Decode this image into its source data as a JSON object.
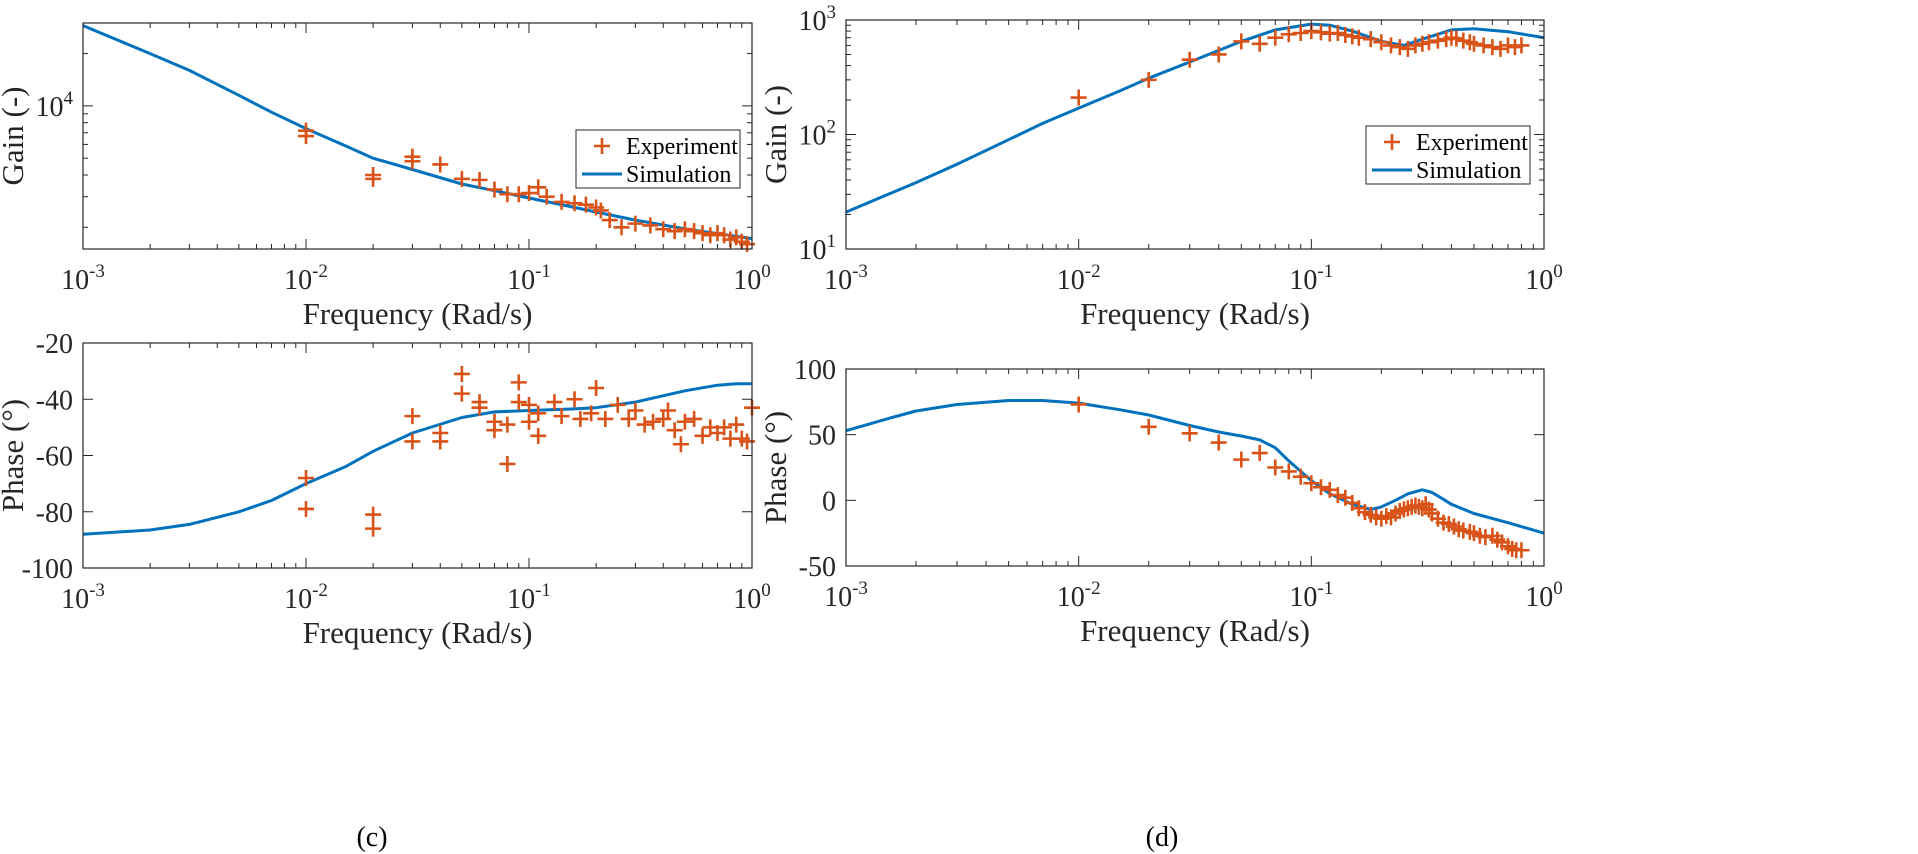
{
  "colors": {
    "experiment": "#D95319",
    "simulation": "#0072BD",
    "axis": "#262626"
  },
  "chart_data": [
    {
      "id": "c-gain",
      "type": "line",
      "xscale": "log",
      "yscale": "log",
      "xlim": [
        0.001,
        1
      ],
      "ylim": [
        1500,
        30000
      ],
      "xlabel": "Frequency (Rad/s)",
      "ylabel": "Gain (-)",
      "xticks": [
        {
          "base": "10",
          "exp": "-3"
        },
        {
          "base": "10",
          "exp": "-2"
        },
        {
          "base": "10",
          "exp": "-1"
        },
        {
          "base": "10",
          "exp": "0"
        }
      ],
      "yticks": [
        {
          "base": "10",
          "exp": "4",
          "value": 10000
        }
      ],
      "yminor": [
        2000
      ],
      "legend": {
        "position": "right",
        "entries": [
          "Experiment",
          "Simulation"
        ]
      },
      "series": [
        {
          "name": "Simulation",
          "kind": "line",
          "x": [
            0.001,
            0.002,
            0.003,
            0.005,
            0.007,
            0.01,
            0.015,
            0.02,
            0.03,
            0.05,
            0.07,
            0.1,
            0.15,
            0.2,
            0.3,
            0.5,
            0.7,
            1.0
          ],
          "y": [
            29000,
            20000,
            16000,
            11500,
            9200,
            7400,
            5900,
            5000,
            4300,
            3550,
            3250,
            2950,
            2650,
            2450,
            2200,
            1960,
            1840,
            1720
          ]
        },
        {
          "name": "Experiment",
          "kind": "scatter",
          "x": [
            0.01,
            0.01,
            0.02,
            0.02,
            0.03,
            0.03,
            0.04,
            0.05,
            0.06,
            0.07,
            0.08,
            0.09,
            0.1,
            0.11,
            0.12,
            0.14,
            0.16,
            0.18,
            0.2,
            0.21,
            0.23,
            0.26,
            0.3,
            0.35,
            0.4,
            0.45,
            0.5,
            0.55,
            0.6,
            0.65,
            0.7,
            0.75,
            0.8,
            0.85,
            0.9,
            0.95
          ],
          "y": [
            7200,
            6700,
            4000,
            3800,
            5100,
            4800,
            4600,
            3800,
            3750,
            3300,
            3100,
            3100,
            3150,
            3400,
            3000,
            2800,
            2750,
            2700,
            2600,
            2500,
            2200,
            2000,
            2100,
            2050,
            1950,
            1900,
            1950,
            1900,
            1850,
            1800,
            1850,
            1800,
            1700,
            1750,
            1650,
            1600
          ]
        }
      ]
    },
    {
      "id": "c-phase",
      "type": "line",
      "xscale": "log",
      "yscale": "linear",
      "xlim": [
        0.001,
        1
      ],
      "ylim": [
        -100,
        -20
      ],
      "xlabel": "Frequency (Rad/s)",
      "ylabel": "Phase (°)",
      "xticks": [
        {
          "base": "10",
          "exp": "-3"
        },
        {
          "base": "10",
          "exp": "-2"
        },
        {
          "base": "10",
          "exp": "-1"
        },
        {
          "base": "10",
          "exp": "0"
        }
      ],
      "yticks": [
        {
          "label": "-20",
          "value": -20
        },
        {
          "label": "-40",
          "value": -40
        },
        {
          "label": "-60",
          "value": -60
        },
        {
          "label": "-80",
          "value": -80
        },
        {
          "label": "-100",
          "value": -100
        }
      ],
      "series": [
        {
          "name": "Simulation",
          "kind": "line",
          "x": [
            0.001,
            0.002,
            0.003,
            0.005,
            0.007,
            0.01,
            0.015,
            0.02,
            0.03,
            0.05,
            0.07,
            0.1,
            0.15,
            0.2,
            0.3,
            0.5,
            0.7,
            0.85,
            1.0
          ],
          "y": [
            -88,
            -86.5,
            -84.5,
            -80,
            -76,
            -70,
            -64,
            -58.5,
            -52,
            -46.5,
            -44.5,
            -44,
            -43.5,
            -43,
            -41,
            -37,
            -35,
            -34.5,
            -34.5
          ]
        },
        {
          "name": "Experiment",
          "kind": "scatter",
          "x": [
            0.01,
            0.01,
            0.02,
            0.02,
            0.03,
            0.03,
            0.04,
            0.04,
            0.05,
            0.05,
            0.06,
            0.06,
            0.07,
            0.07,
            0.08,
            0.08,
            0.09,
            0.09,
            0.1,
            0.1,
            0.11,
            0.11,
            0.13,
            0.14,
            0.16,
            0.17,
            0.19,
            0.2,
            0.22,
            0.25,
            0.28,
            0.3,
            0.33,
            0.36,
            0.4,
            0.42,
            0.45,
            0.48,
            0.5,
            0.55,
            0.6,
            0.65,
            0.7,
            0.75,
            0.8,
            0.85,
            0.9,
            0.95,
            1.0
          ],
          "y": [
            -68,
            -79,
            -81,
            -86,
            -46,
            -55,
            -52,
            -55,
            -31,
            -38,
            -41,
            -43,
            -48,
            -51,
            -49,
            -63,
            -34,
            -41,
            -42,
            -48,
            -45,
            -53,
            -41,
            -46,
            -40,
            -47,
            -45,
            -36,
            -47,
            -42,
            -47,
            -44,
            -49,
            -48,
            -47,
            -44,
            -51,
            -56,
            -48,
            -47,
            -53,
            -50,
            -52,
            -50,
            -54,
            -49,
            -54,
            -55,
            -43
          ]
        }
      ]
    },
    {
      "id": "d-gain",
      "type": "line",
      "xscale": "log",
      "yscale": "log",
      "xlim": [
        0.001,
        1
      ],
      "ylim": [
        10,
        1000
      ],
      "xlabel": "Frequency (Rad/s)",
      "ylabel": "Gain (-)",
      "xticks": [
        {
          "base": "10",
          "exp": "-3"
        },
        {
          "base": "10",
          "exp": "-2"
        },
        {
          "base": "10",
          "exp": "-1"
        },
        {
          "base": "10",
          "exp": "0"
        }
      ],
      "yticks": [
        {
          "base": "10",
          "exp": "1",
          "value": 10
        },
        {
          "base": "10",
          "exp": "2",
          "value": 100
        },
        {
          "base": "10",
          "exp": "3",
          "value": 1000
        }
      ],
      "legend": {
        "position": "right",
        "entries": [
          "Experiment",
          "Simulation"
        ]
      },
      "series": [
        {
          "name": "Simulation",
          "kind": "line",
          "x": [
            0.001,
            0.002,
            0.003,
            0.005,
            0.007,
            0.01,
            0.015,
            0.02,
            0.03,
            0.05,
            0.07,
            0.1,
            0.12,
            0.15,
            0.2,
            0.25,
            0.3,
            0.4,
            0.5,
            0.7,
            1.0
          ],
          "y": [
            21,
            38,
            55,
            90,
            125,
            170,
            240,
            310,
            430,
            650,
            820,
            920,
            900,
            800,
            650,
            600,
            680,
            820,
            840,
            790,
            700
          ]
        },
        {
          "name": "Experiment",
          "kind": "scatter",
          "x": [
            0.01,
            0.02,
            0.03,
            0.04,
            0.05,
            0.06,
            0.07,
            0.08,
            0.09,
            0.1,
            0.11,
            0.12,
            0.13,
            0.14,
            0.15,
            0.16,
            0.18,
            0.2,
            0.22,
            0.24,
            0.26,
            0.28,
            0.3,
            0.32,
            0.35,
            0.38,
            0.4,
            0.42,
            0.45,
            0.48,
            0.5,
            0.55,
            0.6,
            0.65,
            0.7,
            0.75,
            0.8
          ],
          "y": [
            210,
            300,
            450,
            500,
            650,
            620,
            700,
            750,
            770,
            800,
            780,
            760,
            770,
            740,
            720,
            700,
            680,
            640,
            600,
            580,
            560,
            600,
            620,
            640,
            660,
            680,
            700,
            690,
            660,
            640,
            620,
            600,
            580,
            560,
            600,
            580,
            600
          ]
        }
      ]
    },
    {
      "id": "d-phase",
      "type": "line",
      "xscale": "log",
      "yscale": "linear",
      "xlim": [
        0.001,
        1
      ],
      "ylim": [
        -50,
        100
      ],
      "xlabel": "Frequency (Rad/s)",
      "ylabel": "Phase (°)",
      "xticks": [
        {
          "base": "10",
          "exp": "-3"
        },
        {
          "base": "10",
          "exp": "-2"
        },
        {
          "base": "10",
          "exp": "-1"
        },
        {
          "base": "10",
          "exp": "0"
        }
      ],
      "yticks": [
        {
          "label": "100",
          "value": 100
        },
        {
          "label": "50",
          "value": 50
        },
        {
          "label": "0",
          "value": 0
        },
        {
          "label": "-50",
          "value": -50
        }
      ],
      "series": [
        {
          "name": "Simulation",
          "kind": "line",
          "x": [
            0.001,
            0.0015,
            0.002,
            0.003,
            0.005,
            0.007,
            0.01,
            0.015,
            0.02,
            0.03,
            0.04,
            0.05,
            0.06,
            0.07,
            0.08,
            0.1,
            0.12,
            0.15,
            0.18,
            0.2,
            0.23,
            0.26,
            0.3,
            0.33,
            0.36,
            0.4,
            0.5,
            0.7,
            1.0
          ],
          "y": [
            53,
            62,
            68,
            73,
            76,
            76,
            74,
            69,
            65,
            57,
            52,
            49,
            46,
            40,
            30,
            15,
            5,
            -3,
            -7,
            -5,
            0,
            5,
            8,
            6,
            2,
            -3,
            -10,
            -17,
            -25
          ]
        },
        {
          "name": "Experiment",
          "kind": "scatter",
          "x": [
            0.01,
            0.02,
            0.03,
            0.04,
            0.05,
            0.06,
            0.07,
            0.08,
            0.09,
            0.1,
            0.11,
            0.12,
            0.13,
            0.14,
            0.15,
            0.16,
            0.17,
            0.18,
            0.19,
            0.2,
            0.21,
            0.22,
            0.23,
            0.24,
            0.25,
            0.26,
            0.27,
            0.28,
            0.29,
            0.3,
            0.31,
            0.32,
            0.33,
            0.35,
            0.37,
            0.39,
            0.41,
            0.43,
            0.45,
            0.48,
            0.5,
            0.53,
            0.56,
            0.6,
            0.63,
            0.66,
            0.7,
            0.73,
            0.76,
            0.8
          ],
          "y": [
            73,
            56,
            51,
            44,
            31,
            36,
            25,
            22,
            18,
            13,
            10,
            8,
            4,
            2,
            -2,
            -6,
            -9,
            -11,
            -13,
            -14,
            -12,
            -13,
            -10,
            -8,
            -7,
            -6,
            -5,
            -4,
            -5,
            -6,
            -3,
            -7,
            -10,
            -14,
            -17,
            -18,
            -20,
            -22,
            -23,
            -24,
            -25,
            -27,
            -28,
            -27,
            -30,
            -32,
            -35,
            -37,
            -38,
            -38
          ]
        }
      ]
    }
  ],
  "panel_labels": [
    "(c)",
    "(d)"
  ]
}
